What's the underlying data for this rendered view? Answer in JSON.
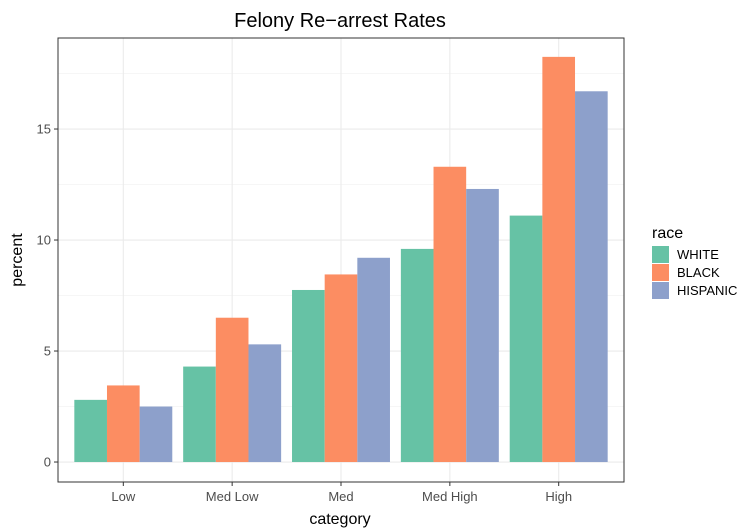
{
  "chart_data": {
    "type": "bar",
    "title": "Felony Re−arrest Rates",
    "xlabel": "category",
    "ylabel": "percent",
    "categories": [
      "Low",
      "Med Low",
      "Med",
      "Med High",
      "High"
    ],
    "series": [
      {
        "name": "WHITE",
        "color": "#66c2a5",
        "values": [
          2.8,
          4.3,
          7.75,
          9.6,
          11.1
        ]
      },
      {
        "name": "BLACK",
        "color": "#fc8d62",
        "values": [
          3.45,
          6.5,
          8.45,
          13.3,
          18.25
        ]
      },
      {
        "name": "HISPANIC",
        "color": "#8da0cb",
        "values": [
          2.5,
          5.3,
          9.2,
          12.3,
          16.7
        ]
      }
    ],
    "ylim": [
      -0.9,
      19.1
    ],
    "yticks": [
      0,
      5,
      10,
      15
    ],
    "grid": true,
    "legend": {
      "title": "race",
      "position": "right"
    }
  }
}
